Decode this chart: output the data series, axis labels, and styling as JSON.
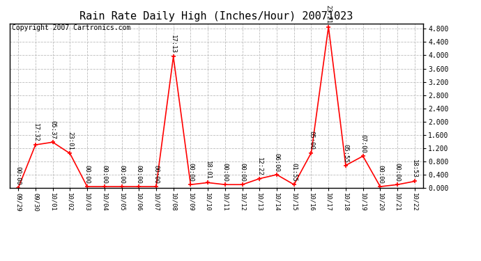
{
  "title": "Rain Rate Daily High (Inches/Hour) 20071023",
  "copyright": "Copyright 2007 Cartronics.com",
  "x_labels": [
    "09/29",
    "09/30",
    "10/01",
    "10/02",
    "10/03",
    "10/04",
    "10/05",
    "10/06",
    "10/07",
    "10/08",
    "10/09",
    "10/10",
    "10/11",
    "10/12",
    "10/13",
    "10/14",
    "10/15",
    "10/16",
    "10/17",
    "10/18",
    "10/19",
    "10/20",
    "10/21",
    "10/22"
  ],
  "x_indices": [
    0,
    1,
    2,
    3,
    4,
    5,
    6,
    7,
    8,
    9,
    10,
    11,
    12,
    13,
    14,
    15,
    16,
    17,
    18,
    19,
    20,
    21,
    22,
    23
  ],
  "y_values": [
    0.0,
    1.3,
    1.38,
    1.04,
    0.04,
    0.04,
    0.04,
    0.04,
    0.04,
    3.96,
    0.1,
    0.16,
    0.1,
    0.1,
    0.28,
    0.4,
    0.1,
    1.06,
    4.86,
    0.68,
    0.96,
    0.04,
    0.1,
    0.2
  ],
  "point_labels": [
    {
      "idx": 0,
      "label": "00:00"
    },
    {
      "idx": 1,
      "label": "17:32"
    },
    {
      "idx": 2,
      "label": "05:37"
    },
    {
      "idx": 3,
      "label": "23:01"
    },
    {
      "idx": 4,
      "label": "00:00"
    },
    {
      "idx": 5,
      "label": "00:00"
    },
    {
      "idx": 6,
      "label": "00:00"
    },
    {
      "idx": 7,
      "label": "00:00"
    },
    {
      "idx": 8,
      "label": "00:00"
    },
    {
      "idx": 9,
      "label": "17:13"
    },
    {
      "idx": 10,
      "label": "00:00"
    },
    {
      "idx": 11,
      "label": "18:01"
    },
    {
      "idx": 12,
      "label": "00:00"
    },
    {
      "idx": 13,
      "label": "00:00"
    },
    {
      "idx": 14,
      "label": "12:22"
    },
    {
      "idx": 15,
      "label": "06:00"
    },
    {
      "idx": 16,
      "label": "01:55"
    },
    {
      "idx": 17,
      "label": "05:00"
    },
    {
      "idx": 18,
      "label": "23:21"
    },
    {
      "idx": 19,
      "label": "05:55"
    },
    {
      "idx": 20,
      "label": "07:00"
    },
    {
      "idx": 21,
      "label": "00:00"
    },
    {
      "idx": 22,
      "label": "00:00"
    },
    {
      "idx": 23,
      "label": "18:53"
    }
  ],
  "line_color": "#FF0000",
  "marker_color": "#FF0000",
  "background_color": "#FFFFFF",
  "grid_color": "#BBBBBB",
  "ylim": [
    0.0,
    4.96
  ],
  "yticks": [
    0.0,
    0.4,
    0.8,
    1.2,
    1.6,
    2.0,
    2.4,
    2.8,
    3.2,
    3.6,
    4.0,
    4.4,
    4.8
  ],
  "title_fontsize": 11,
  "copyright_fontsize": 7,
  "label_fontsize": 6.5
}
